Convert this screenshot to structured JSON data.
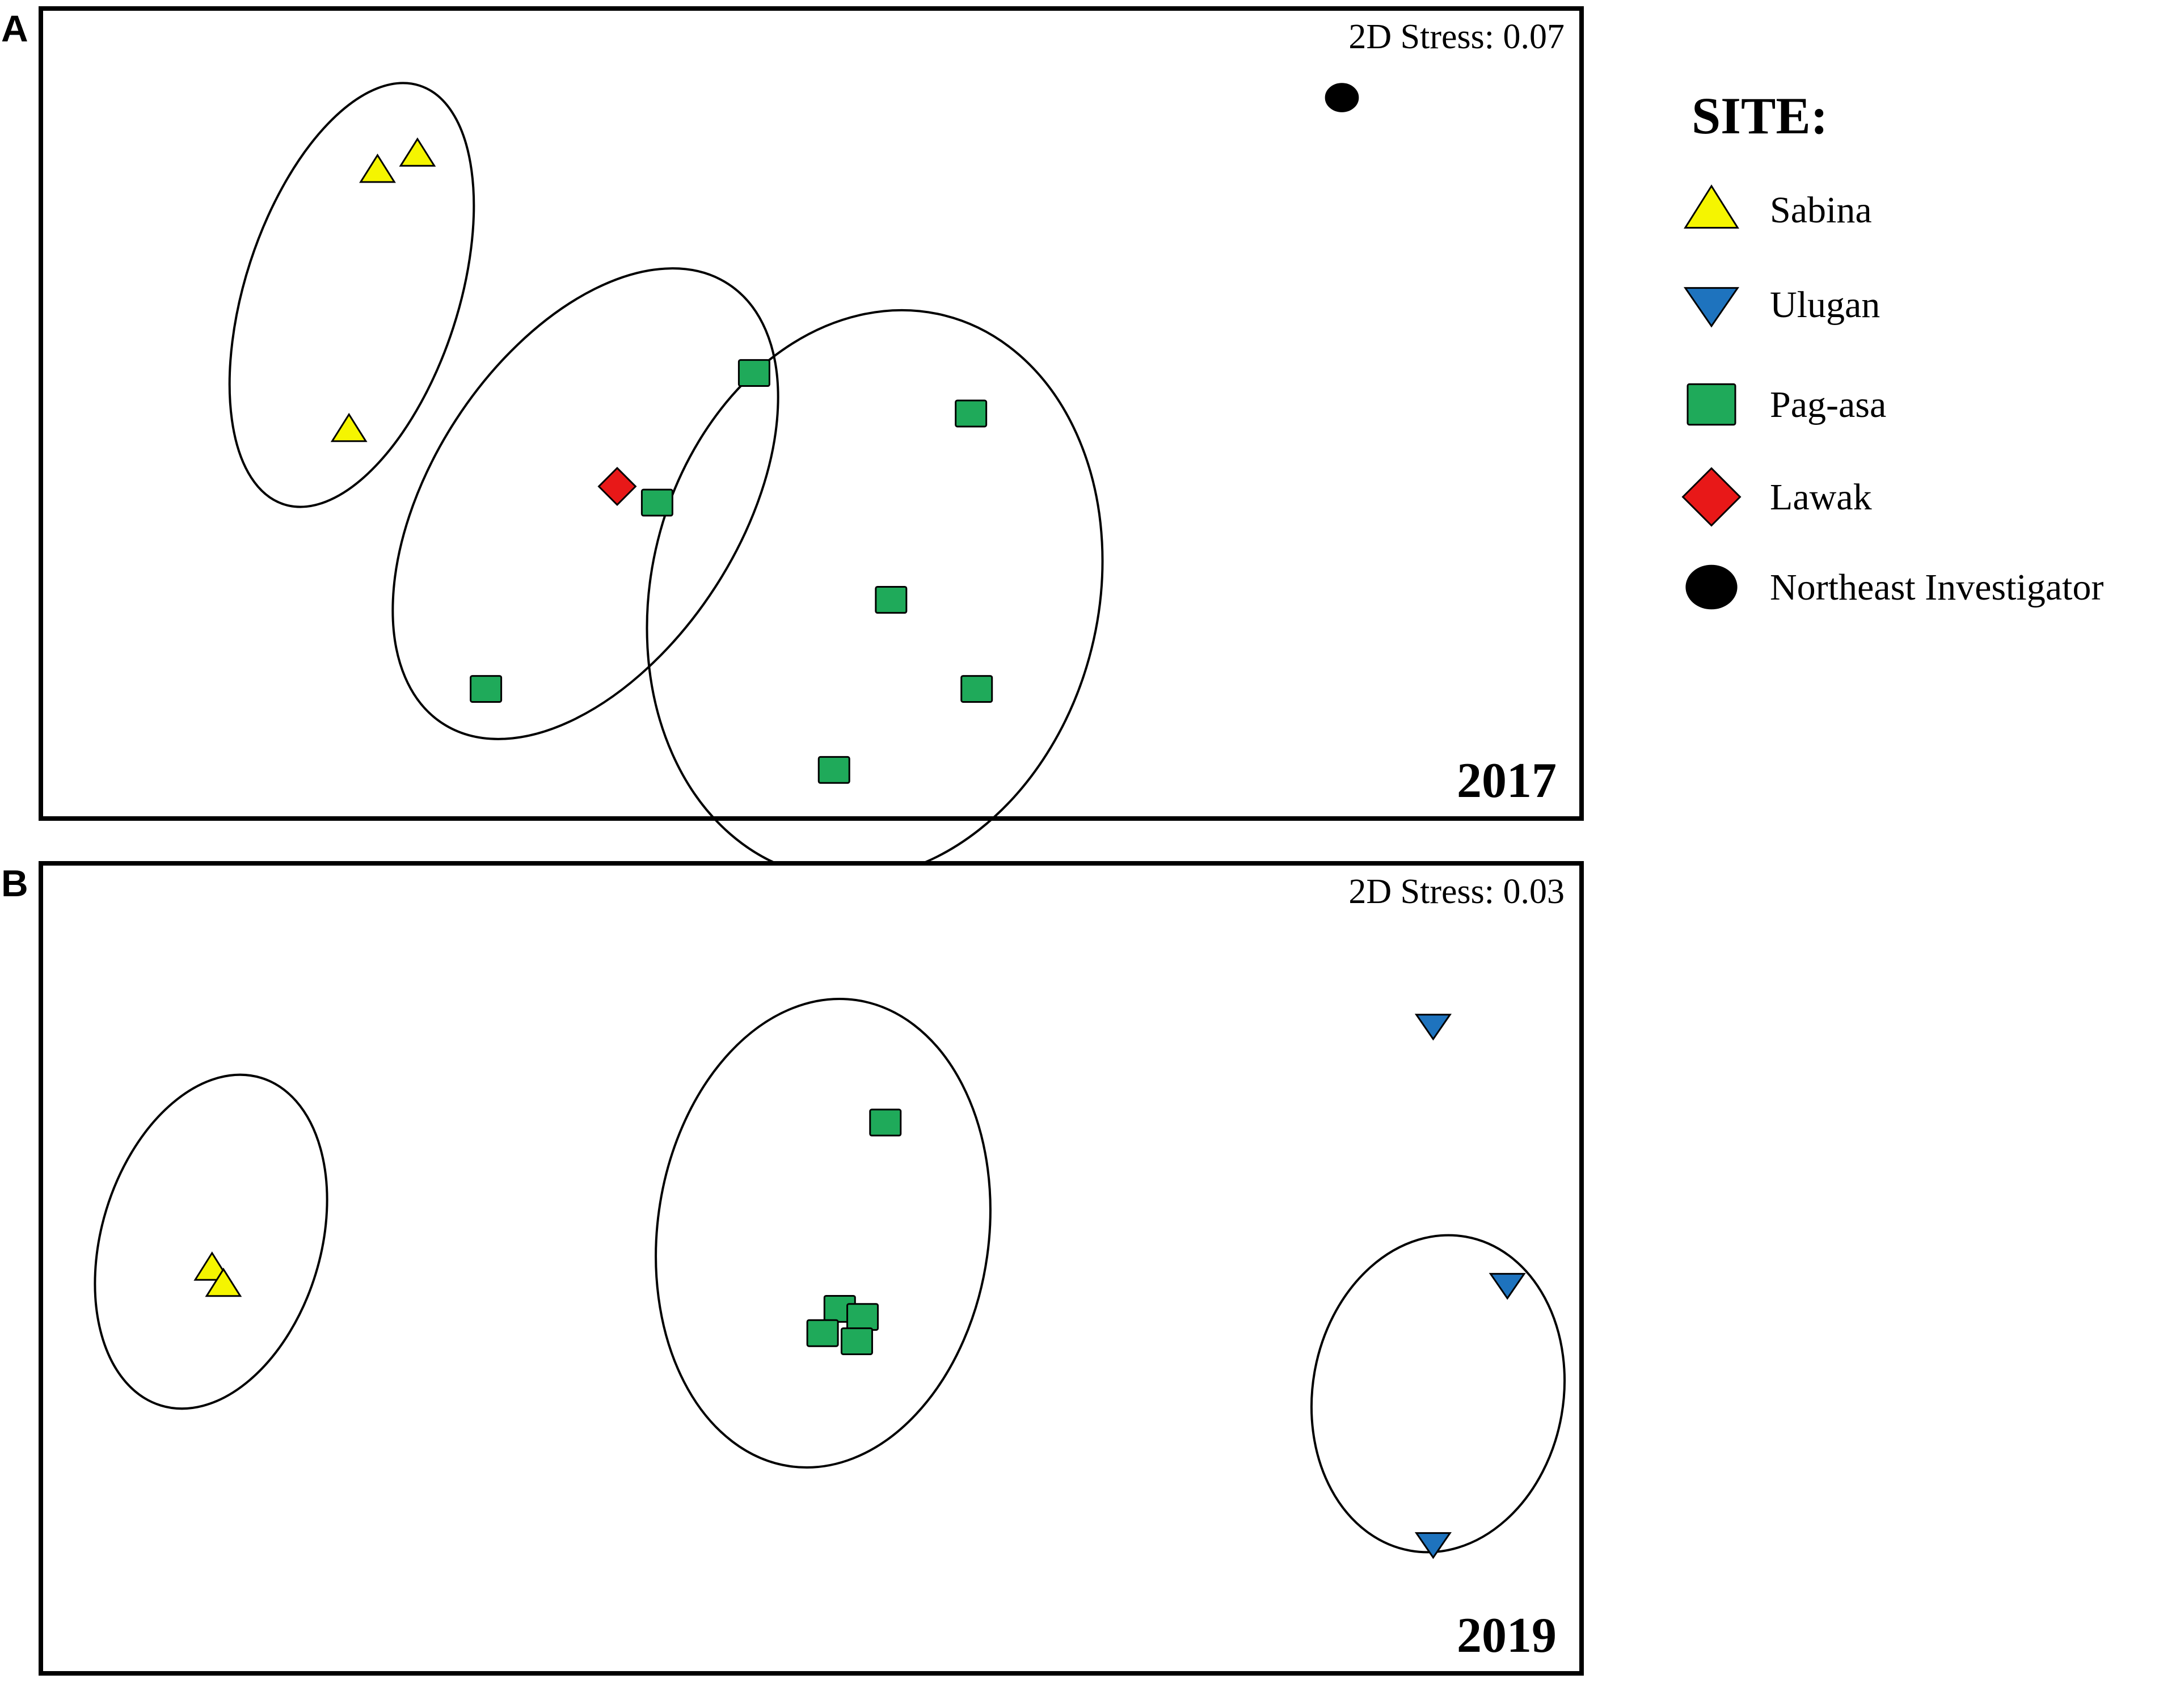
{
  "chart_data": [
    {
      "type": "scatter",
      "panel_label": "A",
      "stress_text": "2D Stress: 0.07",
      "year": "2017",
      "axes_ticks": "none",
      "series": [
        {
          "site": "Sabina",
          "points": [
            [
              0.59,
              0.8
            ],
            [
              0.66,
              0.82
            ],
            [
              0.54,
              0.48
            ]
          ]
        },
        {
          "site": "Pag-asa",
          "points": [
            [
              1.25,
              0.55
            ],
            [
              1.08,
              0.39
            ],
            [
              0.78,
              0.16
            ],
            [
              1.63,
              0.5
            ],
            [
              1.49,
              0.27
            ],
            [
              1.64,
              0.16
            ],
            [
              1.39,
              0.06
            ]
          ]
        },
        {
          "site": "Lawak",
          "points": [
            [
              1.01,
              0.41
            ]
          ]
        },
        {
          "site": "Northeast Investigator",
          "points": [
            [
              2.28,
              0.89
            ]
          ]
        }
      ],
      "groups": [
        {
          "members": "Sabina",
          "center": [
            0.62,
            0.63
          ]
        },
        {
          "members": "Pag-asa + Lawak",
          "center": [
            1.03,
            0.36
          ]
        },
        {
          "members": "Pag-asa",
          "center": [
            1.54,
            0.29
          ]
        }
      ]
    },
    {
      "type": "scatter",
      "panel_label": "B",
      "stress_text": "2D Stress: 0.03",
      "year": "2019",
      "axes_ticks": "none",
      "series": [
        {
          "site": "Sabina",
          "points": [
            [
              0.3,
              0.5
            ],
            [
              0.32,
              0.48
            ]
          ]
        },
        {
          "site": "Pag-asa",
          "points": [
            [
              1.48,
              0.68
            ],
            [
              1.4,
              0.45
            ],
            [
              1.44,
              0.44
            ],
            [
              1.37,
              0.42
            ],
            [
              1.43,
              0.41
            ]
          ]
        },
        {
          "site": "Ulugan",
          "points": [
            [
              2.44,
              0.8
            ],
            [
              2.57,
              0.48
            ],
            [
              2.44,
              0.16
            ]
          ]
        }
      ],
      "groups": [
        {
          "members": "Sabina",
          "center": [
            0.37,
            0.46
          ]
        },
        {
          "members": "Pag-asa",
          "center": [
            1.45,
            0.51
          ]
        },
        {
          "members": "Ulugan",
          "center": [
            2.53,
            0.3
          ]
        }
      ]
    }
  ],
  "legend": {
    "title": "SITE:",
    "placement": "right",
    "items": [
      {
        "label": "Sabina",
        "shape": "triangle-up",
        "color": "#f5f500"
      },
      {
        "label": "Ulugan",
        "shape": "triangle-down",
        "color": "#1e73be"
      },
      {
        "label": "Pag-asa",
        "shape": "square",
        "color": "#1faa5a"
      },
      {
        "label": "Lawak",
        "shape": "diamond",
        "color": "#e81818"
      },
      {
        "label": "Northeast Investigator",
        "shape": "circle",
        "color": "#000000"
      }
    ]
  }
}
